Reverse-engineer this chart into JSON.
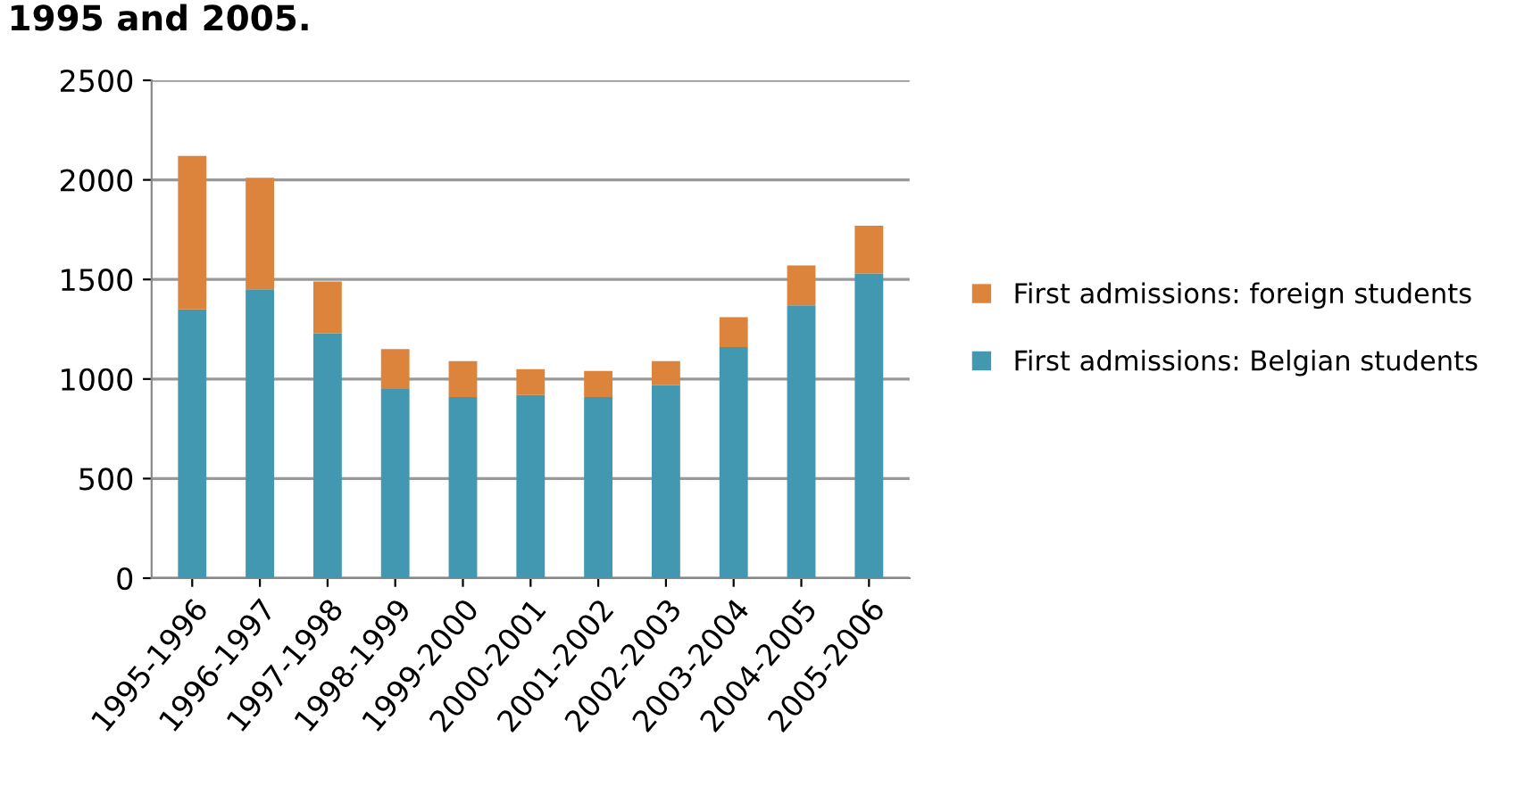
{
  "chart_data": {
    "type": "bar",
    "title": "1995 and 2005.",
    "stacked": true,
    "grid": "y",
    "legend": "right",
    "categories": [
      "1995-1996",
      "1996-1997",
      "1997-1998",
      "1998-1999",
      "1999-2000",
      "2000-2001",
      "2001-2002",
      "2002-2003",
      "2003-2004",
      "2004-2005",
      "2005-2006"
    ],
    "series": [
      {
        "name": "First admissions: Belgian students",
        "color": "#4198b0",
        "values": [
          1350,
          1450,
          1230,
          950,
          910,
          920,
          910,
          970,
          1160,
          1370,
          1530
        ]
      },
      {
        "name": "First admissions: foreign students",
        "color": "#dc843c",
        "values": [
          770,
          560,
          260,
          200,
          180,
          130,
          130,
          120,
          150,
          200,
          240
        ]
      }
    ],
    "ylim": [
      0,
      2500
    ],
    "yticks": [
      0,
      500,
      1000,
      1500,
      2000,
      2500
    ]
  }
}
